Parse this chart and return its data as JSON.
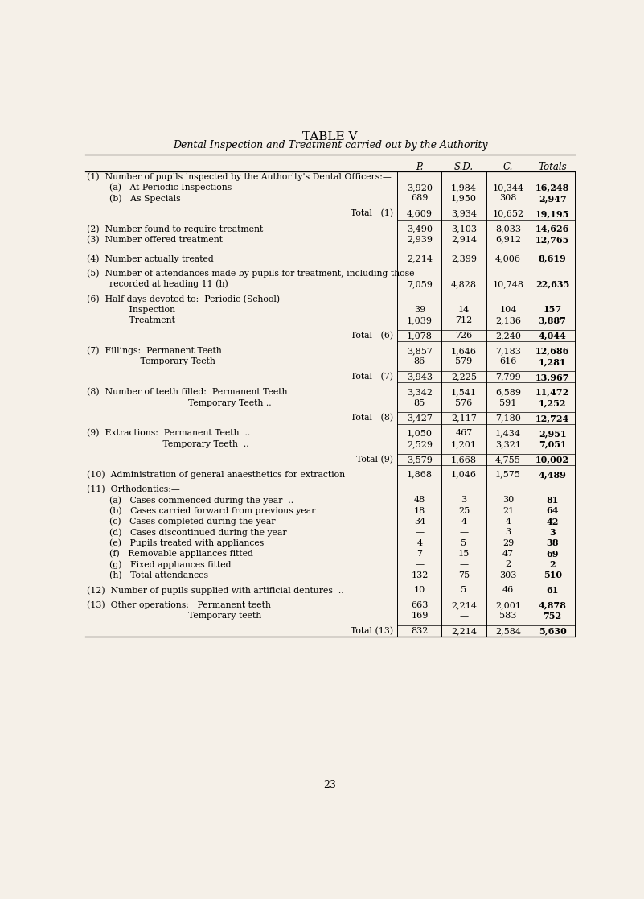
{
  "title": "TABLE V",
  "subtitle": "Dental Inspection and Treatment carried out by the Authority",
  "bg_color": "#f5f0e8",
  "col_headers": [
    "P.",
    "S.D.",
    "C.",
    "Totals"
  ],
  "page_number": "23",
  "rows": [
    {
      "label": "(1)  Number of pupils inspected by the Authority's Dental Officers:—",
      "values": [
        null,
        null,
        null,
        null
      ],
      "is_section": true
    },
    {
      "label": "        (a)   At Periodic Inspections",
      "values": [
        "3,920",
        "1,984",
        "10,344",
        "16,248"
      ]
    },
    {
      "label": "        (b)   As Specials",
      "values": [
        "689",
        "1,950",
        "308",
        "2,947"
      ]
    },
    {
      "label": "",
      "values": null,
      "is_spacer": true
    },
    {
      "label": "Total   (1)",
      "values": [
        "4,609",
        "3,934",
        "10,652",
        "19,195"
      ],
      "is_total": true
    },
    {
      "label": "",
      "values": null,
      "is_spacer": true
    },
    {
      "label": "(2)  Number found to require treatment",
      "values": [
        "3,490",
        "3,103",
        "8,033",
        "14,626"
      ]
    },
    {
      "label": "(3)  Number offered treatment",
      "values": [
        "2,939",
        "2,914",
        "6,912",
        "12,765"
      ]
    },
    {
      "label": "",
      "values": null,
      "is_spacer": true
    },
    {
      "label": "",
      "values": null,
      "is_spacer": true
    },
    {
      "label": "(4)  Number actually treated",
      "values": [
        "2,214",
        "2,399",
        "4,006",
        "8,619"
      ]
    },
    {
      "label": "",
      "values": null,
      "is_spacer": true
    },
    {
      "label": "(5)  Number of attendances made by pupils for treatment, including those",
      "values": [
        null,
        null,
        null,
        null
      ],
      "is_section": true
    },
    {
      "label": "        recorded at heading 11 (h)",
      "values": [
        "7,059",
        "4,828",
        "10,748",
        "22,635"
      ]
    },
    {
      "label": "",
      "values": null,
      "is_spacer": true
    },
    {
      "label": "(6)  Half days devoted to:  Periodic (School)",
      "values": [
        null,
        null,
        null,
        null
      ],
      "is_section": true
    },
    {
      "label": "               Inspection",
      "values": [
        "39",
        "14",
        "104",
        "157"
      ]
    },
    {
      "label": "               Treatment",
      "values": [
        "1,039",
        "712",
        "2,136",
        "3,887"
      ]
    },
    {
      "label": "",
      "values": null,
      "is_spacer": true
    },
    {
      "label": "Total   (6)",
      "values": [
        "1,078",
        "726",
        "2,240",
        "4,044"
      ],
      "is_total": true
    },
    {
      "label": "",
      "values": null,
      "is_spacer": true
    },
    {
      "label": "(7)  Fillings:  Permanent Teeth",
      "values": [
        "3,857",
        "1,646",
        "7,183",
        "12,686"
      ]
    },
    {
      "label": "                   Temporary Teeth",
      "values": [
        "86",
        "579",
        "616",
        "1,281"
      ]
    },
    {
      "label": "",
      "values": null,
      "is_spacer": true
    },
    {
      "label": "Total   (7)",
      "values": [
        "3,943",
        "2,225",
        "7,799",
        "13,967"
      ],
      "is_total": true
    },
    {
      "label": "",
      "values": null,
      "is_spacer": true
    },
    {
      "label": "(8)  Number of teeth filled:  Permanent Teeth",
      "values": [
        "3,342",
        "1,541",
        "6,589",
        "11,472"
      ]
    },
    {
      "label": "                                    Temporary Teeth ..",
      "values": [
        "85",
        "576",
        "591",
        "1,252"
      ]
    },
    {
      "label": "",
      "values": null,
      "is_spacer": true
    },
    {
      "label": "Total   (8)",
      "values": [
        "3,427",
        "2,117",
        "7,180",
        "12,724"
      ],
      "is_total": true
    },
    {
      "label": "",
      "values": null,
      "is_spacer": true
    },
    {
      "label": "(9)  Extractions:  Permanent Teeth  ..",
      "values": [
        "1,050",
        "467",
        "1,434",
        "2,951"
      ]
    },
    {
      "label": "                           Temporary Teeth  ..",
      "values": [
        "2,529",
        "1,201",
        "3,321",
        "7,051"
      ]
    },
    {
      "label": "",
      "values": null,
      "is_spacer": true
    },
    {
      "label": "Total (9)",
      "values": [
        "3,579",
        "1,668",
        "4,755",
        "10,002"
      ],
      "is_total": true
    },
    {
      "label": "",
      "values": null,
      "is_spacer": true
    },
    {
      "label": "(10)  Administration of general anaesthetics for extraction",
      "values": [
        "1,868",
        "1,046",
        "1,575",
        "4,489"
      ]
    },
    {
      "label": "",
      "values": null,
      "is_spacer": true
    },
    {
      "label": "(11)  Orthodontics:—",
      "values": [
        null,
        null,
        null,
        null
      ],
      "is_section": true
    },
    {
      "label": "        (a)   Cases commenced during the year  ..",
      "values": [
        "48",
        "3",
        "30",
        "81"
      ]
    },
    {
      "label": "        (b)   Cases carried forward from previous year",
      "values": [
        "18",
        "25",
        "21",
        "64"
      ]
    },
    {
      "label": "        (c)   Cases completed during the year",
      "values": [
        "34",
        "4",
        "4",
        "42"
      ]
    },
    {
      "label": "        (d)   Cases discontinued during the year",
      "values": [
        "—",
        "—",
        "3",
        "3"
      ]
    },
    {
      "label": "        (e)   Pupils treated with appliances",
      "values": [
        "4",
        "5",
        "29",
        "38"
      ]
    },
    {
      "label": "        (f)   Removable appliances fitted",
      "values": [
        "7",
        "15",
        "47",
        "69"
      ]
    },
    {
      "label": "        (g)   Fixed appliances fitted",
      "values": [
        "—",
        "—",
        "2",
        "2"
      ]
    },
    {
      "label": "        (h)   Total attendances",
      "values": [
        "132",
        "75",
        "303",
        "510"
      ]
    },
    {
      "label": "",
      "values": null,
      "is_spacer": true
    },
    {
      "label": "(12)  Number of pupils supplied with artificial dentures  ..",
      "values": [
        "10",
        "5",
        "46",
        "61"
      ]
    },
    {
      "label": "",
      "values": null,
      "is_spacer": true
    },
    {
      "label": "(13)  Other operations:   Permanent teeth",
      "values": [
        "663",
        "2,214",
        "2,001",
        "4,878"
      ]
    },
    {
      "label": "                                    Temporary teeth",
      "values": [
        "169",
        "—",
        "583",
        "752"
      ]
    },
    {
      "label": "",
      "values": null,
      "is_spacer": true
    },
    {
      "label": "Total (13)",
      "values": [
        "832",
        "2,214",
        "2,584",
        "5,630"
      ],
      "is_total": true
    }
  ]
}
